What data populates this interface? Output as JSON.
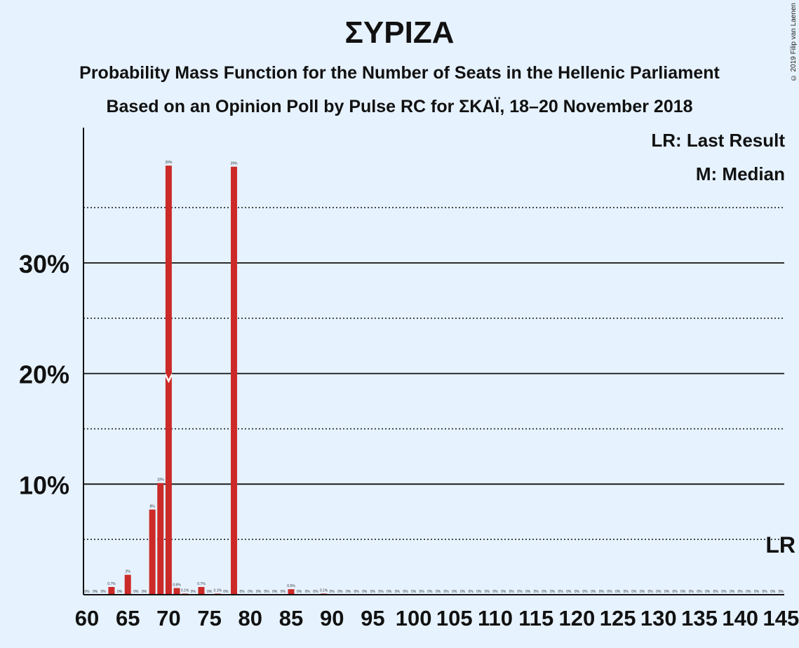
{
  "title": "ΣΥΡΙΖΑ",
  "subtitle_1": "Probability Mass Function for the Number of Seats in the Hellenic Parliament",
  "subtitle_2": "Based on an Opinion Poll by Pulse RC for ΣΚΑΪ, 18–20 November 2018",
  "copyright": "© 2019 Filip van Laenen",
  "legend": {
    "last_result": "LR: Last Result",
    "median": "M: Median"
  },
  "colors": {
    "background": "#e6f2fe",
    "bar": "#cc2a28",
    "text": "#111111"
  },
  "chart_data": {
    "type": "bar",
    "title": "ΣΥΡΙΖΑ",
    "x_range": [
      60,
      145
    ],
    "ylim": [
      0,
      42
    ],
    "y_ticks": [
      {
        "value": 10,
        "label": "10%"
      },
      {
        "value": 20,
        "label": "20%"
      },
      {
        "value": 30,
        "label": "30%"
      }
    ],
    "y_dotted": [
      5,
      15,
      25,
      35
    ],
    "x_ticks": [
      60,
      65,
      70,
      75,
      80,
      85,
      90,
      95,
      100,
      105,
      110,
      115,
      120,
      125,
      130,
      135,
      140,
      145
    ],
    "median_seat": 70,
    "median_label": "M",
    "last_result_seat": 145,
    "last_result_label": "LR",
    "bars": [
      {
        "seat": 63,
        "value": 0.7,
        "label": "0.7%"
      },
      {
        "seat": 65,
        "value": 1.8,
        "label": "2%"
      },
      {
        "seat": 68,
        "value": 7.7,
        "label": "8%"
      },
      {
        "seat": 69,
        "value": 10.1,
        "label": "10%"
      },
      {
        "seat": 70,
        "value": 38.8,
        "label": "39%"
      },
      {
        "seat": 71,
        "value": 0.6,
        "label": "0.6%"
      },
      {
        "seat": 72,
        "value": 0.1,
        "label": "0.1%"
      },
      {
        "seat": 74,
        "value": 0.7,
        "label": "0.7%"
      },
      {
        "seat": 76,
        "value": 0.1,
        "label": "0.1%"
      },
      {
        "seat": 78,
        "value": 38.7,
        "label": "39%"
      },
      {
        "seat": 85,
        "value": 0.5,
        "label": "0.5%"
      },
      {
        "seat": 89,
        "value": 0.1,
        "label": "0.1%"
      }
    ],
    "zero_label": "0%"
  }
}
